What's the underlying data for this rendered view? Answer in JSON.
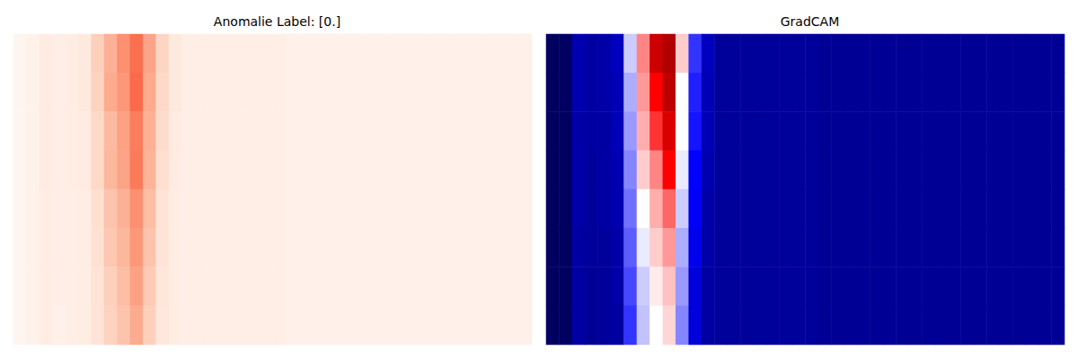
{
  "chart_data": [
    {
      "type": "heatmap",
      "title": "Anomalie Label: [0.]",
      "color": "Reds",
      "clim": [
        0,
        1
      ],
      "tick_labels": false,
      "cells": [
        [
          0,
          0.02,
          0.06,
          0.04,
          0.05,
          0.07,
          0.18,
          0.28,
          0.38,
          0.48,
          0.32,
          0.16,
          0.07,
          0.04,
          0.04,
          0.04,
          0.04,
          0.04,
          0.04,
          0.04,
          0.04,
          0.03,
          0.03,
          0.03,
          0.03,
          0.03,
          0.03,
          0.03,
          0.03,
          0.03,
          0.03,
          0.03,
          0.03,
          0.03,
          0.03,
          0.03,
          0.03,
          0.03,
          0.03,
          0.03
        ],
        [
          0,
          0.02,
          0.06,
          0.04,
          0.05,
          0.07,
          0.17,
          0.3,
          0.36,
          0.5,
          0.3,
          0.15,
          0.07,
          0.04,
          0.04,
          0.04,
          0.04,
          0.04,
          0.04,
          0.04,
          0.04,
          0.03,
          0.03,
          0.03,
          0.03,
          0.03,
          0.03,
          0.03,
          0.03,
          0.03,
          0.03,
          0.03,
          0.03,
          0.03,
          0.03,
          0.03,
          0.03,
          0.03,
          0.03,
          0.03
        ],
        [
          0,
          0.02,
          0.06,
          0.04,
          0.05,
          0.06,
          0.15,
          0.25,
          0.33,
          0.44,
          0.28,
          0.14,
          0.06,
          0.04,
          0.04,
          0.04,
          0.04,
          0.04,
          0.04,
          0.04,
          0.04,
          0.03,
          0.03,
          0.03,
          0.03,
          0.03,
          0.03,
          0.03,
          0.03,
          0.03,
          0.03,
          0.03,
          0.03,
          0.03,
          0.03,
          0.03,
          0.03,
          0.03,
          0.03,
          0.03
        ],
        [
          0,
          0.02,
          0.06,
          0.04,
          0.05,
          0.06,
          0.15,
          0.26,
          0.32,
          0.45,
          0.27,
          0.13,
          0.06,
          0.04,
          0.04,
          0.04,
          0.04,
          0.04,
          0.04,
          0.04,
          0.04,
          0.03,
          0.03,
          0.03,
          0.03,
          0.03,
          0.03,
          0.03,
          0.03,
          0.03,
          0.03,
          0.03,
          0.03,
          0.03,
          0.03,
          0.03,
          0.03,
          0.03,
          0.03,
          0.03
        ],
        [
          0,
          0.02,
          0.05,
          0.04,
          0.04,
          0.05,
          0.13,
          0.22,
          0.28,
          0.38,
          0.24,
          0.11,
          0.05,
          0.04,
          0.04,
          0.04,
          0.04,
          0.04,
          0.04,
          0.04,
          0.04,
          0.03,
          0.03,
          0.03,
          0.03,
          0.03,
          0.03,
          0.03,
          0.03,
          0.03,
          0.03,
          0.03,
          0.03,
          0.03,
          0.03,
          0.03,
          0.03,
          0.03,
          0.03,
          0.03
        ],
        [
          0,
          0.02,
          0.05,
          0.04,
          0.04,
          0.05,
          0.12,
          0.21,
          0.26,
          0.36,
          0.22,
          0.1,
          0.05,
          0.04,
          0.04,
          0.04,
          0.04,
          0.04,
          0.04,
          0.04,
          0.04,
          0.03,
          0.03,
          0.03,
          0.03,
          0.03,
          0.03,
          0.03,
          0.03,
          0.03,
          0.03,
          0.03,
          0.03,
          0.03,
          0.03,
          0.03,
          0.03,
          0.03,
          0.03,
          0.03
        ],
        [
          0,
          0.02,
          0.05,
          0.04,
          0.04,
          0.05,
          0.11,
          0.18,
          0.24,
          0.33,
          0.2,
          0.09,
          0.05,
          0.04,
          0.04,
          0.04,
          0.04,
          0.04,
          0.04,
          0.04,
          0.04,
          0.03,
          0.03,
          0.03,
          0.03,
          0.03,
          0.03,
          0.03,
          0.03,
          0.03,
          0.03,
          0.03,
          0.03,
          0.03,
          0.03,
          0.03,
          0.03,
          0.03,
          0.03,
          0.03
        ],
        [
          0,
          0.02,
          0.05,
          0.03,
          0.04,
          0.05,
          0.1,
          0.17,
          0.22,
          0.3,
          0.18,
          0.08,
          0.05,
          0.04,
          0.04,
          0.04,
          0.04,
          0.04,
          0.04,
          0.04,
          0.04,
          0.03,
          0.03,
          0.03,
          0.03,
          0.03,
          0.03,
          0.03,
          0.03,
          0.03,
          0.03,
          0.03,
          0.03,
          0.03,
          0.03,
          0.03,
          0.03,
          0.03,
          0.03,
          0.03
        ]
      ]
    },
    {
      "type": "heatmap",
      "title": "GradCAM",
      "color": "seismic",
      "clim": [
        0,
        1
      ],
      "tick_labels": false,
      "cells": [
        [
          0.03,
          0.03,
          0.14,
          0.12,
          0.13,
          0.16,
          0.45,
          0.62,
          0.85,
          0.9,
          0.55,
          0.3,
          0.16,
          0.11,
          0.11,
          0.11,
          0.11,
          0.11,
          0.11,
          0.11,
          0.11,
          0.1,
          0.1,
          0.1,
          0.1,
          0.1,
          0.1,
          0.1,
          0.1,
          0.1,
          0.1,
          0.1,
          0.1,
          0.1,
          0.1,
          0.1,
          0.1,
          0.1,
          0.1,
          0.1
        ],
        [
          0.03,
          0.03,
          0.14,
          0.12,
          0.13,
          0.15,
          0.42,
          0.6,
          0.75,
          0.88,
          0.5,
          0.28,
          0.15,
          0.11,
          0.11,
          0.11,
          0.11,
          0.11,
          0.11,
          0.11,
          0.11,
          0.1,
          0.1,
          0.1,
          0.1,
          0.1,
          0.1,
          0.1,
          0.1,
          0.1,
          0.1,
          0.1,
          0.1,
          0.1,
          0.1,
          0.1,
          0.1,
          0.1,
          0.1,
          0.1
        ],
        [
          0.03,
          0.03,
          0.13,
          0.12,
          0.12,
          0.15,
          0.4,
          0.58,
          0.7,
          0.82,
          0.5,
          0.27,
          0.15,
          0.11,
          0.11,
          0.11,
          0.11,
          0.11,
          0.11,
          0.11,
          0.11,
          0.1,
          0.1,
          0.1,
          0.1,
          0.1,
          0.1,
          0.1,
          0.1,
          0.1,
          0.1,
          0.1,
          0.1,
          0.1,
          0.1,
          0.1,
          0.1,
          0.1,
          0.1,
          0.1
        ],
        [
          0.03,
          0.03,
          0.13,
          0.11,
          0.12,
          0.14,
          0.38,
          0.55,
          0.62,
          0.75,
          0.48,
          0.25,
          0.14,
          0.11,
          0.11,
          0.11,
          0.11,
          0.11,
          0.11,
          0.11,
          0.11,
          0.1,
          0.1,
          0.1,
          0.1,
          0.1,
          0.1,
          0.1,
          0.1,
          0.1,
          0.1,
          0.1,
          0.1,
          0.1,
          0.1,
          0.1,
          0.1,
          0.1,
          0.1,
          0.1
        ],
        [
          0.03,
          0.03,
          0.13,
          0.11,
          0.12,
          0.14,
          0.36,
          0.5,
          0.58,
          0.65,
          0.45,
          0.24,
          0.13,
          0.11,
          0.11,
          0.11,
          0.11,
          0.11,
          0.11,
          0.11,
          0.11,
          0.1,
          0.1,
          0.1,
          0.1,
          0.1,
          0.1,
          0.1,
          0.1,
          0.1,
          0.1,
          0.1,
          0.1,
          0.1,
          0.1,
          0.1,
          0.1,
          0.1,
          0.1,
          0.1
        ],
        [
          0.03,
          0.03,
          0.12,
          0.11,
          0.11,
          0.13,
          0.34,
          0.48,
          0.55,
          0.6,
          0.42,
          0.22,
          0.13,
          0.11,
          0.11,
          0.11,
          0.11,
          0.11,
          0.11,
          0.11,
          0.11,
          0.1,
          0.1,
          0.1,
          0.1,
          0.1,
          0.1,
          0.1,
          0.1,
          0.1,
          0.1,
          0.1,
          0.1,
          0.1,
          0.1,
          0.1,
          0.1,
          0.1,
          0.1,
          0.1
        ],
        [
          0.03,
          0.03,
          0.12,
          0.1,
          0.11,
          0.13,
          0.32,
          0.45,
          0.52,
          0.56,
          0.4,
          0.2,
          0.12,
          0.11,
          0.11,
          0.11,
          0.11,
          0.11,
          0.11,
          0.11,
          0.11,
          0.1,
          0.1,
          0.1,
          0.1,
          0.1,
          0.1,
          0.1,
          0.1,
          0.1,
          0.1,
          0.1,
          0.1,
          0.1,
          0.1,
          0.1,
          0.1,
          0.1,
          0.1,
          0.1
        ],
        [
          0.03,
          0.03,
          0.12,
          0.1,
          0.11,
          0.12,
          0.3,
          0.44,
          0.5,
          0.54,
          0.38,
          0.2,
          0.12,
          0.11,
          0.11,
          0.11,
          0.11,
          0.11,
          0.11,
          0.11,
          0.11,
          0.1,
          0.1,
          0.1,
          0.1,
          0.1,
          0.1,
          0.1,
          0.1,
          0.1,
          0.1,
          0.1,
          0.1,
          0.1,
          0.1,
          0.1,
          0.1,
          0.1,
          0.1,
          0.1
        ]
      ]
    }
  ]
}
